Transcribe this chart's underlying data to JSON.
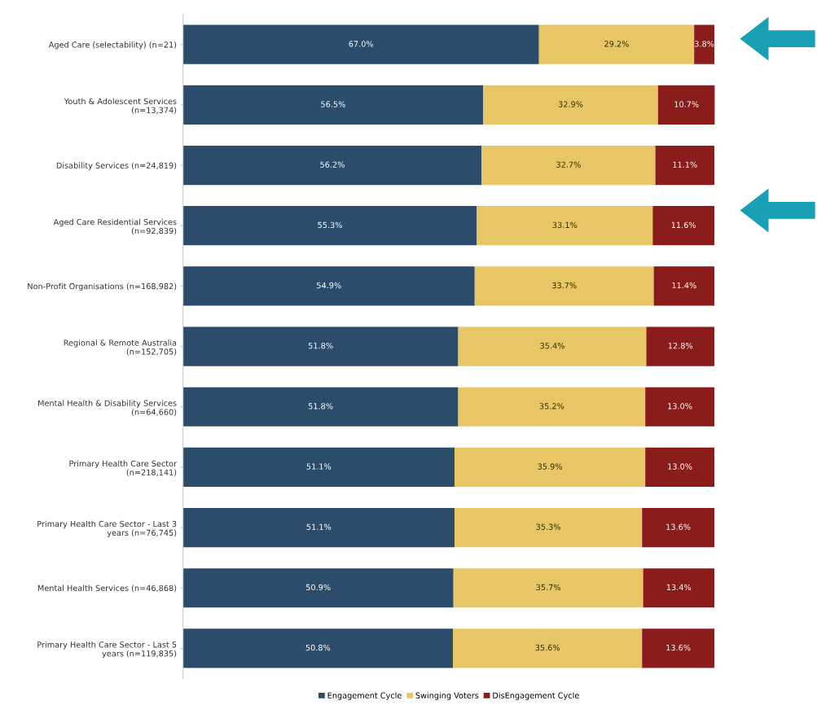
{
  "chart_data": {
    "type": "bar",
    "orientation": "horizontal",
    "stacked": true,
    "categories": [
      "Aged Care (selectability) (n=21)",
      "Youth & Adolescent Services\n(n=13,374)",
      "Disability Services (n=24,819)",
      "Aged Care Residential Services\n(n=92,839)",
      "Non-Profit Organisations (n=168,982)",
      "Regional & Remote Australia\n(n=152,705)",
      "Mental Health & Disability Services\n(n=64,660)",
      "Primary Health Care Sector\n(n=218,141)",
      "Primary Health Care Sector - Last 3\nyears (n=76,745)",
      "Mental Health Services (n=46,868)",
      "Primary Health Care Sector - Last 5\nyears (n=119,835)"
    ],
    "series": [
      {
        "name": "Engagement Cycle",
        "color": "#2b4d6b",
        "values": [
          67.0,
          56.5,
          56.2,
          55.3,
          54.9,
          51.8,
          51.8,
          51.1,
          51.1,
          50.9,
          50.8
        ],
        "value_labels": [
          "67.0%",
          "56.5%",
          "56.2%",
          "55.3%",
          "54.9%",
          "51.8%",
          "51.8%",
          "51.1%",
          "51.1%",
          "50.9%",
          "50.8%"
        ]
      },
      {
        "name": "Swinging Voters",
        "color": "#e8c565",
        "values": [
          29.2,
          32.9,
          32.7,
          33.1,
          33.7,
          35.4,
          35.2,
          35.9,
          35.3,
          35.7,
          35.6
        ],
        "value_labels": [
          "29.2%",
          "32.9%",
          "32.7%",
          "33.1%",
          "33.7%",
          "35.4%",
          "35.2%",
          "35.9%",
          "35.3%",
          "35.7%",
          "35.6%"
        ]
      },
      {
        "name": "DisEngagement Cycle",
        "color": "#8a1c1c",
        "values": [
          3.8,
          10.7,
          11.1,
          11.6,
          11.4,
          12.8,
          13.0,
          13.0,
          13.6,
          13.4,
          13.6
        ],
        "value_labels": [
          "3.8%",
          "10.7%",
          "11.1%",
          "11.6%",
          "11.4%",
          "12.8%",
          "13.0%",
          "13.0%",
          "13.6%",
          "13.4%",
          "13.6%"
        ]
      }
    ],
    "tick_labels": "y",
    "legend": "bottom"
  }
}
